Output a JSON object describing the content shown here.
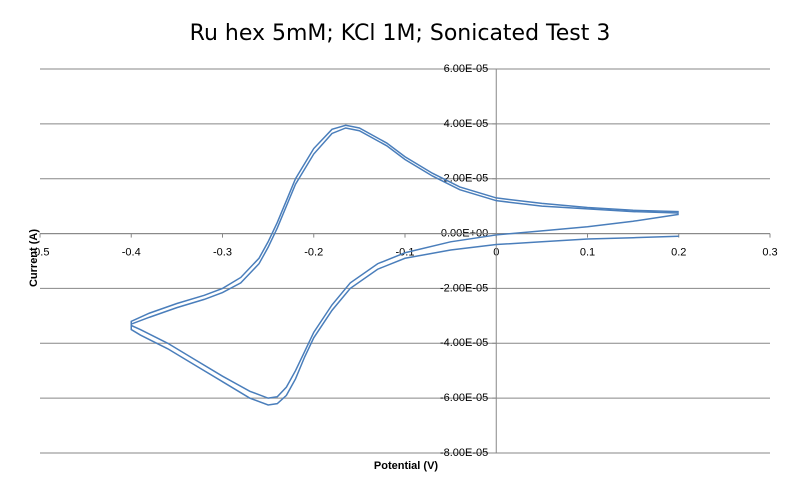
{
  "chart_data": {
    "type": "scatter-line",
    "title": "Ru hex 5mM; KCl 1M; Sonicated Test 3",
    "x_label": "Potential (V)",
    "y_label": "Current (A)",
    "xlim": [
      -0.5,
      0.3
    ],
    "xticks": [
      -0.5,
      -0.4,
      -0.3,
      -0.2,
      -0.1,
      0,
      0.1,
      0.2,
      0.3
    ],
    "ylim": [
      -8e-05,
      6e-05
    ],
    "yticks": [
      {
        "value": -8e-05,
        "label": "-8.00E-05"
      },
      {
        "value": -6e-05,
        "label": "-6.00E-05"
      },
      {
        "value": -4e-05,
        "label": "-4.00E-05"
      },
      {
        "value": -2e-05,
        "label": "-2.00E-05"
      },
      {
        "value": 0,
        "label": "0.00E+00"
      },
      {
        "value": 2e-05,
        "label": "2.00E-05"
      },
      {
        "value": 4e-05,
        "label": "4.00E-05"
      },
      {
        "value": 6e-05,
        "label": "6.00E-05"
      }
    ],
    "grid": true,
    "series": [
      {
        "color": "#4a7ebb",
        "x": [
          0.2,
          0.15,
          0.1,
          0.05,
          0.0,
          -0.05,
          -0.1,
          -0.13,
          -0.16,
          -0.18,
          -0.2,
          -0.21,
          -0.22,
          -0.23,
          -0.24,
          -0.25,
          -0.27,
          -0.3,
          -0.33,
          -0.36,
          -0.39,
          -0.4,
          -0.4,
          -0.38,
          -0.35,
          -0.32,
          -0.3,
          -0.28,
          -0.26,
          -0.25,
          -0.24,
          -0.23,
          -0.22,
          -0.2,
          -0.18,
          -0.165,
          -0.15,
          -0.12,
          -0.1,
          -0.07,
          -0.04,
          0.0,
          0.05,
          0.1,
          0.15,
          0.2
        ],
        "values": [
          -1e-06,
          -1.5e-06,
          -2e-06,
          -3e-06,
          -4e-06,
          -6e-06,
          -9e-06,
          -1.3e-05,
          -2e-05,
          -2.8e-05,
          -3.8e-05,
          -4.5e-05,
          -5.3e-05,
          -5.9e-05,
          -6.2e-05,
          -6.25e-05,
          -6e-05,
          -5.4e-05,
          -4.8e-05,
          -4.2e-05,
          -3.7e-05,
          -3.5e-05,
          -3.2e-05,
          -2.9e-05,
          -2.55e-05,
          -2.25e-05,
          -2e-05,
          -1.6e-05,
          -9e-06,
          -3e-06,
          4e-06,
          1.2e-05,
          2e-05,
          3.1e-05,
          3.8e-05,
          3.95e-05,
          3.85e-05,
          3.3e-05,
          2.8e-05,
          2.2e-05,
          1.7e-05,
          1.3e-05,
          1.1e-05,
          9.5e-06,
          8.5e-06,
          8e-06
        ]
      },
      {
        "color": "#4a7ebb",
        "x": [
          0.2,
          0.15,
          0.1,
          0.05,
          0.0,
          -0.05,
          -0.1,
          -0.13,
          -0.16,
          -0.18,
          -0.2,
          -0.21,
          -0.22,
          -0.23,
          -0.24,
          -0.25,
          -0.27,
          -0.3,
          -0.33,
          -0.36,
          -0.39,
          -0.4,
          -0.4,
          -0.38,
          -0.35,
          -0.32,
          -0.3,
          -0.28,
          -0.26,
          -0.25,
          -0.24,
          -0.23,
          -0.22,
          -0.2,
          -0.18,
          -0.165,
          -0.15,
          -0.12,
          -0.1,
          -0.07,
          -0.04,
          0.0,
          0.05,
          0.1,
          0.15,
          0.2
        ],
        "values": [
          7e-06,
          4.5e-06,
          2.5e-06,
          1e-06,
          -5e-07,
          -3e-06,
          -7e-06,
          -1.1e-05,
          -1.8e-05,
          -2.6e-05,
          -3.6e-05,
          -4.3e-05,
          -5e-05,
          -5.6e-05,
          -5.95e-05,
          -6e-05,
          -5.75e-05,
          -5.2e-05,
          -4.6e-05,
          -4e-05,
          -3.5e-05,
          -3.35e-05,
          -3.3e-05,
          -3.05e-05,
          -2.7e-05,
          -2.4e-05,
          -2.15e-05,
          -1.8e-05,
          -1.1e-05,
          -5e-06,
          2e-06,
          1e-05,
          1.8e-05,
          2.9e-05,
          3.65e-05,
          3.85e-05,
          3.75e-05,
          3.2e-05,
          2.7e-05,
          2.1e-05,
          1.6e-05,
          1.2e-05,
          1e-05,
          9e-06,
          8e-06,
          7.5e-06
        ]
      }
    ]
  }
}
